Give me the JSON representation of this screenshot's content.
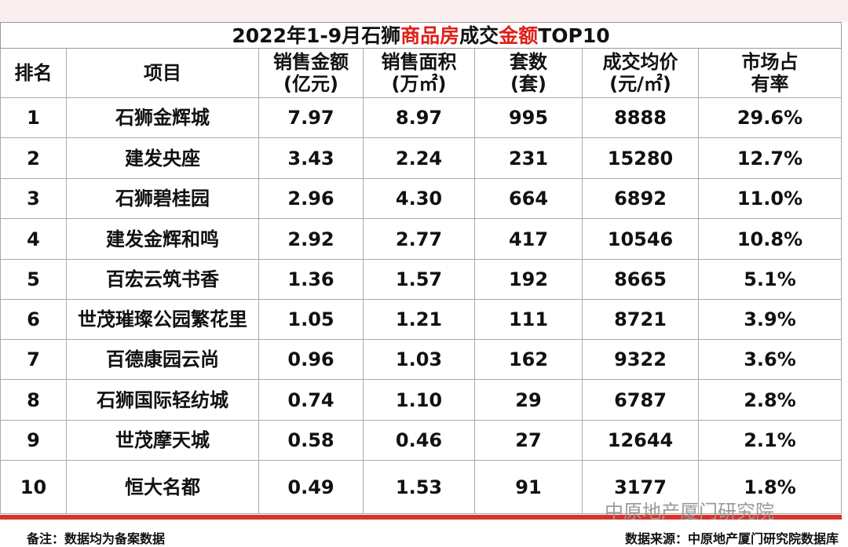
{
  "title": {
    "parts": [
      "2022年1-9月石狮",
      "商品房",
      "成交",
      "金额",
      "TOP10"
    ]
  },
  "table": {
    "header": [
      [
        "排名"
      ],
      [
        "项目"
      ],
      [
        "销售金额",
        "(亿元)"
      ],
      [
        "销售面积",
        "(万㎡)"
      ],
      [
        "套数",
        "(套)"
      ],
      [
        "成交均价",
        "(元/㎡)"
      ],
      [
        "市场占",
        "有率"
      ]
    ],
    "rows": [
      [
        "1",
        "石狮金辉城",
        "7.97",
        "8.97",
        "995",
        "8888",
        "29.6%"
      ],
      [
        "2",
        "建发央座",
        "3.43",
        "2.24",
        "231",
        "15280",
        "12.7%"
      ],
      [
        "3",
        "石狮碧桂园",
        "2.96",
        "4.30",
        "664",
        "6892",
        "11.0%"
      ],
      [
        "4",
        "建发金辉和鸣",
        "2.92",
        "2.77",
        "417",
        "10546",
        "10.8%"
      ],
      [
        "5",
        "百宏云筑书香",
        "1.36",
        "1.57",
        "192",
        "8665",
        "5.1%"
      ],
      [
        "6",
        "世茂璀璨公园繁花里",
        "1.05",
        "1.21",
        "111",
        "8721",
        "3.9%"
      ],
      [
        "7",
        "百德康园云尚",
        "0.96",
        "1.03",
        "162",
        "9322",
        "3.6%"
      ],
      [
        "8",
        "石狮国际轻纺城",
        "0.74",
        "1.10",
        "29",
        "6787",
        "2.8%"
      ],
      [
        "9",
        "世茂摩天城",
        "0.58",
        "0.46",
        "27",
        "12644",
        "2.1%"
      ],
      [
        "10",
        "恒大名都",
        "0.49",
        "1.53",
        "91",
        "3177",
        "1.8%"
      ]
    ]
  },
  "footer": {
    "note": "备注：数据均为备案数据",
    "source": "数据来源：中原地产厦门研究院数据库"
  },
  "watermark": "中原地产厦门研究院"
}
